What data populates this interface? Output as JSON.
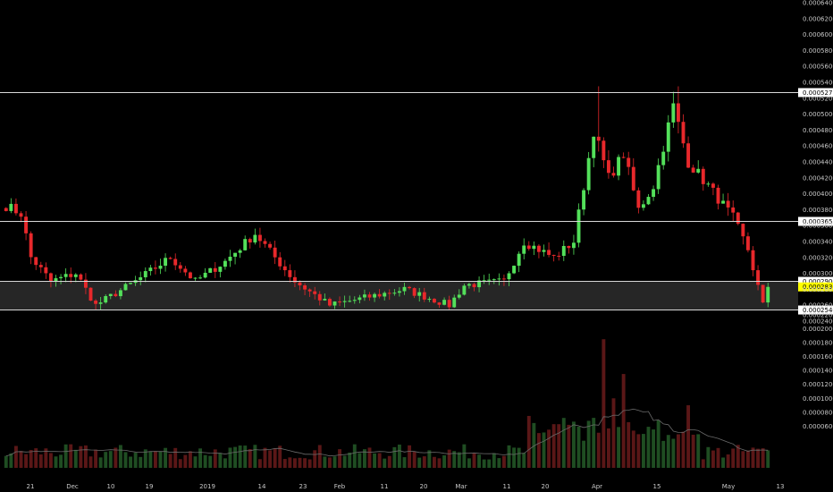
{
  "chart_data": {
    "type": "candlestick",
    "title": "",
    "grid": false,
    "price_axis": {
      "min": 0.00024,
      "max": 0.00064,
      "step": 2e-05,
      "ticks": [
        "0.0002400",
        "0.0002600",
        "0.0002800",
        "0.0003000",
        "0.0003200",
        "0.0003400",
        "0.0003600",
        "0.0003800",
        "0.0004000",
        "0.0004200",
        "0.0004400",
        "0.0004600",
        "0.0004800",
        "0.0005000",
        "0.0005200",
        "0.0005400",
        "0.0005600",
        "0.0005800",
        "0.0006000",
        "0.0006200",
        "0.0006400"
      ]
    },
    "volume_axis": {
      "min": 0,
      "max": 0.00022,
      "ticks": [
        "0.0000600",
        "0.0000800",
        "0.0001000",
        "0.0001200",
        "0.0001400",
        "0.0001600",
        "0.0001800",
        "0.0002000",
        "0.0002200"
      ]
    },
    "x_labels": [
      "21",
      "Dec",
      "10",
      "19",
      "2019",
      "14",
      "23",
      "Feb",
      "11",
      "20",
      "Mar",
      "11",
      "20",
      "Apr",
      "15",
      "May",
      "13"
    ],
    "levels": [
      {
        "value": 0.0005271,
        "label": "0.0005271"
      },
      {
        "value": 0.0003653,
        "label": "0.0003653"
      },
      {
        "value": 0.00029,
        "label": "0.0002900"
      },
      {
        "value": 0.000254,
        "label": "0.0002540"
      }
    ],
    "range_band": [
      0.000254,
      0.00029
    ],
    "current_price": {
      "value": 0.000283,
      "label": "0.0002830"
    },
    "anchors": [
      {
        "i": 0,
        "p": 0.000385
      },
      {
        "i": 3,
        "p": 0.000375
      },
      {
        "i": 5,
        "p": 0.00032
      },
      {
        "i": 9,
        "p": 0.00029
      },
      {
        "i": 14,
        "p": 0.0003
      },
      {
        "i": 18,
        "p": 0.00026
      },
      {
        "i": 26,
        "p": 0.00029
      },
      {
        "i": 33,
        "p": 0.00032
      },
      {
        "i": 38,
        "p": 0.00029
      },
      {
        "i": 44,
        "p": 0.000315
      },
      {
        "i": 50,
        "p": 0.00035
      },
      {
        "i": 54,
        "p": 0.00032
      },
      {
        "i": 58,
        "p": 0.00029
      },
      {
        "i": 65,
        "p": 0.00026
      },
      {
        "i": 80,
        "p": 0.00028
      },
      {
        "i": 89,
        "p": 0.00026
      },
      {
        "i": 92,
        "p": 0.000285
      },
      {
        "i": 100,
        "p": 0.00029
      },
      {
        "i": 104,
        "p": 0.00034
      },
      {
        "i": 110,
        "p": 0.00032
      },
      {
        "i": 114,
        "p": 0.00034
      },
      {
        "i": 118,
        "p": 0.00048
      },
      {
        "i": 121,
        "p": 0.00042
      },
      {
        "i": 124,
        "p": 0.00045
      },
      {
        "i": 127,
        "p": 0.00038
      },
      {
        "i": 130,
        "p": 0.00041
      },
      {
        "i": 134,
        "p": 0.00051
      },
      {
        "i": 137,
        "p": 0.00044
      },
      {
        "i": 141,
        "p": 0.00041
      },
      {
        "i": 146,
        "p": 0.00037
      },
      {
        "i": 149,
        "p": 0.00033
      },
      {
        "i": 152,
        "p": 0.00026
      },
      {
        "i": 153,
        "p": 0.000283
      }
    ],
    "candle_count": 154,
    "colors": {
      "up": "#53e05a",
      "down": "#e8282b",
      "vol_up": "#1f4d22",
      "vol_down": "#5a1717",
      "band": "#262626",
      "line": "#d8d8d8",
      "current": "#ffff00"
    }
  }
}
